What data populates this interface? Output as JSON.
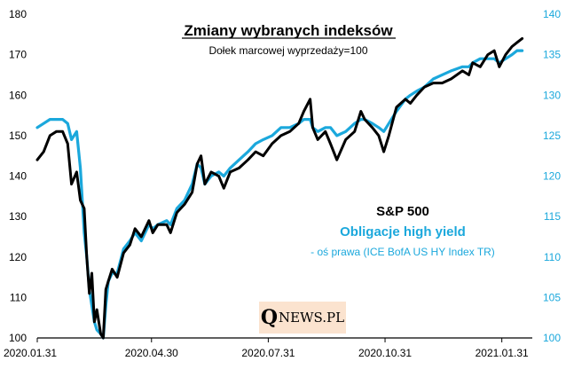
{
  "chart_data": {
    "type": "line",
    "title": "Zmiany wybranych indeksów",
    "subtitle": "Dołek marcowej wyprzedaży=100",
    "x_tick_labels": [
      "2020.01.31",
      "2020.04.30",
      "2020.07.31",
      "2020.10.31",
      "2021.01.31"
    ],
    "y_left": {
      "ticks": [
        100,
        110,
        120,
        130,
        140,
        150,
        160,
        170,
        180
      ],
      "range": [
        100,
        180
      ]
    },
    "y_right": {
      "ticks": [
        100,
        105,
        110,
        115,
        120,
        125,
        130,
        135,
        140
      ],
      "range": [
        100,
        140
      ]
    },
    "legend": {
      "sp_label": "S&P 500",
      "hy_label": "Obligacje high yield",
      "hy_note": "- oś prawa (ICE BofA US HY Index TR)"
    },
    "series": [
      {
        "name": "S&P 500",
        "axis": "left",
        "color": "#000000",
        "points": [
          [
            "2020-01-31",
            144
          ],
          [
            "2020-02-05",
            146
          ],
          [
            "2020-02-10",
            150
          ],
          [
            "2020-02-15",
            151
          ],
          [
            "2020-02-20",
            151
          ],
          [
            "2020-02-24",
            148
          ],
          [
            "2020-02-27",
            138
          ],
          [
            "2020-03-02",
            141
          ],
          [
            "2020-03-05",
            134
          ],
          [
            "2020-03-08",
            132
          ],
          [
            "2020-03-10",
            120
          ],
          [
            "2020-03-12",
            111
          ],
          [
            "2020-03-14",
            116
          ],
          [
            "2020-03-16",
            104
          ],
          [
            "2020-03-18",
            107
          ],
          [
            "2020-03-21",
            101
          ],
          [
            "2020-03-23",
            100
          ],
          [
            "2020-03-25",
            112
          ],
          [
            "2020-03-27",
            114
          ],
          [
            "2020-03-30",
            117
          ],
          [
            "2020-04-03",
            115
          ],
          [
            "2020-04-08",
            121
          ],
          [
            "2020-04-13",
            123
          ],
          [
            "2020-04-17",
            127
          ],
          [
            "2020-04-22",
            125
          ],
          [
            "2020-04-28",
            129
          ],
          [
            "2020-05-01",
            126
          ],
          [
            "2020-05-05",
            128
          ],
          [
            "2020-05-12",
            128
          ],
          [
            "2020-05-15",
            126
          ],
          [
            "2020-05-20",
            131
          ],
          [
            "2020-05-26",
            133
          ],
          [
            "2020-06-01",
            136
          ],
          [
            "2020-06-05",
            143
          ],
          [
            "2020-06-08",
            145
          ],
          [
            "2020-06-11",
            138
          ],
          [
            "2020-06-16",
            141
          ],
          [
            "2020-06-22",
            140
          ],
          [
            "2020-06-26",
            137
          ],
          [
            "2020-07-01",
            141
          ],
          [
            "2020-07-08",
            142
          ],
          [
            "2020-07-15",
            144
          ],
          [
            "2020-07-21",
            146
          ],
          [
            "2020-07-27",
            145
          ],
          [
            "2020-08-03",
            148
          ],
          [
            "2020-08-10",
            150
          ],
          [
            "2020-08-17",
            151
          ],
          [
            "2020-08-24",
            153
          ],
          [
            "2020-08-28",
            156
          ],
          [
            "2020-09-02",
            159
          ],
          [
            "2020-09-04",
            152
          ],
          [
            "2020-09-08",
            149
          ],
          [
            "2020-09-14",
            151
          ],
          [
            "2020-09-18",
            148
          ],
          [
            "2020-09-23",
            144
          ],
          [
            "2020-09-30",
            149
          ],
          [
            "2020-10-07",
            151
          ],
          [
            "2020-10-12",
            156
          ],
          [
            "2020-10-15",
            154
          ],
          [
            "2020-10-21",
            152
          ],
          [
            "2020-10-26",
            150
          ],
          [
            "2020-10-30",
            146
          ],
          [
            "2020-11-03",
            150
          ],
          [
            "2020-11-09",
            157
          ],
          [
            "2020-11-16",
            159
          ],
          [
            "2020-11-20",
            158
          ],
          [
            "2020-11-25",
            160
          ],
          [
            "2020-12-01",
            162
          ],
          [
            "2020-12-08",
            163
          ],
          [
            "2020-12-15",
            163
          ],
          [
            "2020-12-22",
            164
          ],
          [
            "2020-12-31",
            166
          ],
          [
            "2021-01-05",
            165
          ],
          [
            "2021-01-08",
            168
          ],
          [
            "2021-01-14",
            167
          ],
          [
            "2021-01-20",
            170
          ],
          [
            "2021-01-25",
            171
          ],
          [
            "2021-01-29",
            167
          ],
          [
            "2021-02-03",
            170
          ],
          [
            "2021-02-08",
            172
          ],
          [
            "2021-02-12",
            173
          ],
          [
            "2021-02-16",
            174
          ]
        ]
      },
      {
        "name": "Obligacje high yield",
        "axis": "right",
        "color": "#1ba8dc",
        "points": [
          [
            "2020-01-31",
            126
          ],
          [
            "2020-02-05",
            126.5
          ],
          [
            "2020-02-10",
            127
          ],
          [
            "2020-02-15",
            127
          ],
          [
            "2020-02-20",
            127
          ],
          [
            "2020-02-24",
            126.5
          ],
          [
            "2020-02-27",
            124.5
          ],
          [
            "2020-03-02",
            125.5
          ],
          [
            "2020-03-05",
            121
          ],
          [
            "2020-03-08",
            113
          ],
          [
            "2020-03-10",
            110
          ],
          [
            "2020-03-12",
            106
          ],
          [
            "2020-03-14",
            104
          ],
          [
            "2020-03-16",
            102
          ],
          [
            "2020-03-18",
            101
          ],
          [
            "2020-03-21",
            100.5
          ],
          [
            "2020-03-23",
            100
          ],
          [
            "2020-03-25",
            104
          ],
          [
            "2020-03-27",
            107
          ],
          [
            "2020-03-30",
            108
          ],
          [
            "2020-04-03",
            108
          ],
          [
            "2020-04-08",
            111
          ],
          [
            "2020-04-13",
            112
          ],
          [
            "2020-04-17",
            113
          ],
          [
            "2020-04-22",
            112
          ],
          [
            "2020-04-28",
            114
          ],
          [
            "2020-05-01",
            113.5
          ],
          [
            "2020-05-05",
            114
          ],
          [
            "2020-05-12",
            114.5
          ],
          [
            "2020-05-15",
            114
          ],
          [
            "2020-05-20",
            116
          ],
          [
            "2020-05-26",
            117
          ],
          [
            "2020-06-01",
            119
          ],
          [
            "2020-06-05",
            121.5
          ],
          [
            "2020-06-08",
            121
          ],
          [
            "2020-06-11",
            119
          ],
          [
            "2020-06-16",
            120
          ],
          [
            "2020-06-22",
            120.5
          ],
          [
            "2020-06-26",
            120
          ],
          [
            "2020-07-01",
            121
          ],
          [
            "2020-07-08",
            122
          ],
          [
            "2020-07-15",
            123
          ],
          [
            "2020-07-21",
            124
          ],
          [
            "2020-07-27",
            124.5
          ],
          [
            "2020-08-03",
            125
          ],
          [
            "2020-08-10",
            126
          ],
          [
            "2020-08-17",
            126
          ],
          [
            "2020-08-24",
            126.5
          ],
          [
            "2020-08-28",
            127
          ],
          [
            "2020-09-02",
            127
          ],
          [
            "2020-09-04",
            126
          ],
          [
            "2020-09-08",
            125.5
          ],
          [
            "2020-09-14",
            126
          ],
          [
            "2020-09-18",
            126
          ],
          [
            "2020-09-23",
            125
          ],
          [
            "2020-09-30",
            125.5
          ],
          [
            "2020-10-07",
            126.5
          ],
          [
            "2020-10-12",
            127
          ],
          [
            "2020-10-15",
            127
          ],
          [
            "2020-10-21",
            126.5
          ],
          [
            "2020-10-26",
            126
          ],
          [
            "2020-10-30",
            125.5
          ],
          [
            "2020-11-03",
            126.5
          ],
          [
            "2020-11-09",
            128
          ],
          [
            "2020-11-16",
            129.5
          ],
          [
            "2020-11-20",
            130
          ],
          [
            "2020-11-25",
            130.5
          ],
          [
            "2020-12-01",
            131
          ],
          [
            "2020-12-08",
            132
          ],
          [
            "2020-12-15",
            132.5
          ],
          [
            "2020-12-22",
            133
          ],
          [
            "2020-12-31",
            133.5
          ],
          [
            "2021-01-05",
            133.5
          ],
          [
            "2021-01-08",
            134
          ],
          [
            "2021-01-14",
            134.5
          ],
          [
            "2021-01-20",
            134.5
          ],
          [
            "2021-01-25",
            134.5
          ],
          [
            "2021-01-29",
            134
          ],
          [
            "2021-02-03",
            134.5
          ],
          [
            "2021-02-08",
            135
          ],
          [
            "2021-02-12",
            135.5
          ],
          [
            "2021-02-16",
            135.5
          ]
        ]
      }
    ]
  },
  "logo": {
    "big": "Q",
    "rest": "NEWS.PL"
  }
}
